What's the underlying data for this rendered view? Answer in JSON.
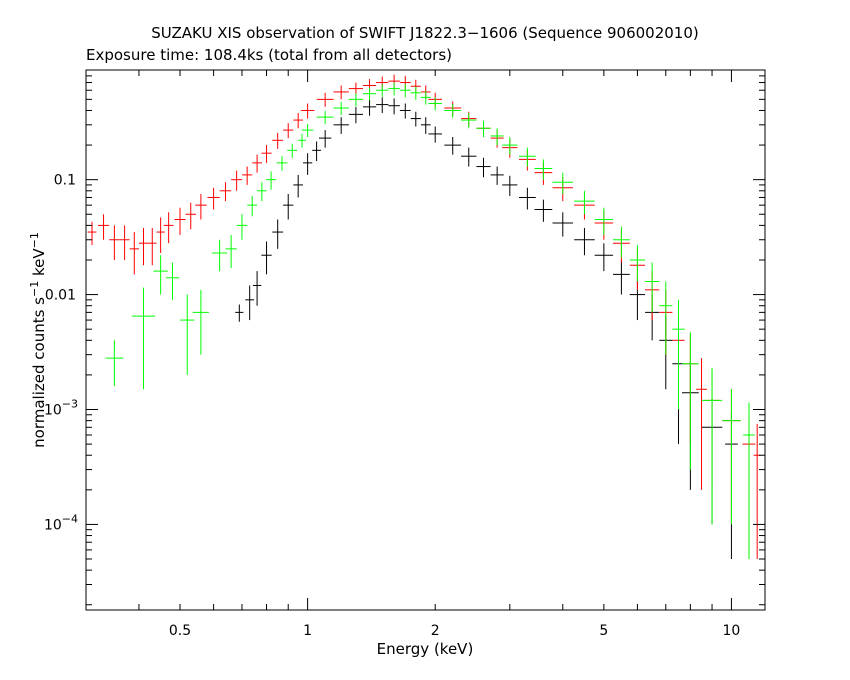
{
  "chart_data": {
    "type": "scatter",
    "title": "SUZAKU XIS observation of SWIFT J1822.3−1606 (Sequence 906002010)",
    "subtitle": "Exposure time: 108.4ks (total from all detectors)",
    "xlabel": "Energy (keV)",
    "ylabel": "normalized counts s",
    "xscale": "log",
    "yscale": "log",
    "xlim": [
      0.3,
      12
    ],
    "ylim": [
      1.8e-05,
      0.9
    ],
    "x_ticks": [
      {
        "value": 0.5,
        "label": "0.5"
      },
      {
        "value": 1,
        "label": "1"
      },
      {
        "value": 2,
        "label": "2"
      },
      {
        "value": 5,
        "label": "5"
      },
      {
        "value": 10,
        "label": "10"
      }
    ],
    "y_ticks": [
      {
        "value": 0.1,
        "label": "0.1"
      },
      {
        "value": 0.01,
        "label": "0.01"
      },
      {
        "value": 0.001,
        "label": "10",
        "exp": "−3"
      },
      {
        "value": 0.0001,
        "label": "10",
        "exp": "−4"
      }
    ],
    "series": [
      {
        "color": "#000000",
        "points": [
          [
            0.69,
            0.007,
            0.0012
          ],
          [
            0.73,
            0.009,
            0.003
          ],
          [
            0.76,
            0.012,
            0.004
          ],
          [
            0.8,
            0.022,
            0.007
          ],
          [
            0.85,
            0.035,
            0.01
          ],
          [
            0.9,
            0.06,
            0.015
          ],
          [
            0.95,
            0.09,
            0.02
          ],
          [
            1.0,
            0.14,
            0.03
          ],
          [
            1.05,
            0.18,
            0.035
          ],
          [
            1.1,
            0.23,
            0.04
          ],
          [
            1.2,
            0.3,
            0.05
          ],
          [
            1.3,
            0.37,
            0.06
          ],
          [
            1.4,
            0.43,
            0.07
          ],
          [
            1.5,
            0.45,
            0.07
          ],
          [
            1.6,
            0.44,
            0.07
          ],
          [
            1.7,
            0.4,
            0.06
          ],
          [
            1.8,
            0.34,
            0.05
          ],
          [
            1.9,
            0.3,
            0.05
          ],
          [
            2.0,
            0.25,
            0.04
          ],
          [
            2.2,
            0.2,
            0.035
          ],
          [
            2.4,
            0.16,
            0.03
          ],
          [
            2.6,
            0.13,
            0.025
          ],
          [
            2.8,
            0.11,
            0.02
          ],
          [
            3.0,
            0.09,
            0.018
          ],
          [
            3.3,
            0.07,
            0.015
          ],
          [
            3.6,
            0.055,
            0.012
          ],
          [
            4.0,
            0.042,
            0.01
          ],
          [
            4.5,
            0.03,
            0.008
          ],
          [
            5.0,
            0.022,
            0.006
          ],
          [
            5.5,
            0.015,
            0.005
          ],
          [
            6.0,
            0.01,
            0.004
          ],
          [
            6.5,
            0.007,
            0.003
          ],
          [
            7.0,
            0.004,
            0.0025
          ],
          [
            7.5,
            0.0025,
            0.002
          ],
          [
            8.0,
            0.0014,
            0.0012
          ],
          [
            9.0,
            0.0007,
            0.0006
          ],
          [
            10.0,
            0.0005,
            0.00045
          ]
        ]
      },
      {
        "color": "#ff0000",
        "points": [
          [
            0.31,
            0.035,
            0.008
          ],
          [
            0.33,
            0.04,
            0.01
          ],
          [
            0.35,
            0.03,
            0.01
          ],
          [
            0.37,
            0.03,
            0.01
          ],
          [
            0.39,
            0.025,
            0.01
          ],
          [
            0.41,
            0.028,
            0.01
          ],
          [
            0.43,
            0.028,
            0.01
          ],
          [
            0.45,
            0.035,
            0.012
          ],
          [
            0.47,
            0.04,
            0.012
          ],
          [
            0.5,
            0.045,
            0.012
          ],
          [
            0.53,
            0.05,
            0.013
          ],
          [
            0.56,
            0.06,
            0.015
          ],
          [
            0.6,
            0.07,
            0.015
          ],
          [
            0.64,
            0.08,
            0.015
          ],
          [
            0.68,
            0.1,
            0.02
          ],
          [
            0.72,
            0.11,
            0.02
          ],
          [
            0.76,
            0.14,
            0.025
          ],
          [
            0.8,
            0.17,
            0.03
          ],
          [
            0.85,
            0.22,
            0.035
          ],
          [
            0.9,
            0.27,
            0.04
          ],
          [
            0.95,
            0.33,
            0.05
          ],
          [
            1.0,
            0.4,
            0.06
          ],
          [
            1.1,
            0.5,
            0.07
          ],
          [
            1.2,
            0.58,
            0.08
          ],
          [
            1.3,
            0.62,
            0.08
          ],
          [
            1.4,
            0.66,
            0.09
          ],
          [
            1.5,
            0.7,
            0.09
          ],
          [
            1.6,
            0.72,
            0.1
          ],
          [
            1.7,
            0.7,
            0.1
          ],
          [
            1.8,
            0.65,
            0.09
          ],
          [
            1.9,
            0.58,
            0.08
          ],
          [
            2.0,
            0.5,
            0.07
          ],
          [
            2.2,
            0.42,
            0.06
          ],
          [
            2.4,
            0.34,
            0.05
          ],
          [
            2.6,
            0.28,
            0.045
          ],
          [
            2.8,
            0.23,
            0.04
          ],
          [
            3.0,
            0.19,
            0.035
          ],
          [
            3.3,
            0.15,
            0.03
          ],
          [
            3.6,
            0.115,
            0.025
          ],
          [
            4.0,
            0.085,
            0.02
          ],
          [
            4.5,
            0.06,
            0.015
          ],
          [
            5.0,
            0.042,
            0.012
          ],
          [
            5.5,
            0.028,
            0.009
          ],
          [
            6.0,
            0.018,
            0.007
          ],
          [
            6.5,
            0.011,
            0.005
          ],
          [
            7.0,
            0.007,
            0.004
          ],
          [
            7.5,
            0.004,
            0.003
          ],
          [
            8.0,
            0.0025,
            0.002
          ],
          [
            8.5,
            0.0015,
            0.0013
          ],
          [
            9.0,
            0.0012,
            0.001
          ],
          [
            10.0,
            0.0008,
            0.0007
          ],
          [
            11.0,
            0.0005,
            0.00045
          ],
          [
            11.5,
            0.0004,
            0.00035
          ]
        ]
      },
      {
        "color": "#00ff00",
        "points": [
          [
            0.35,
            0.0028,
            0.0012
          ],
          [
            0.41,
            0.0065,
            0.005
          ],
          [
            0.45,
            0.016,
            0.006
          ],
          [
            0.48,
            0.014,
            0.005
          ],
          [
            0.52,
            0.006,
            0.004
          ],
          [
            0.56,
            0.007,
            0.004
          ],
          [
            0.62,
            0.023,
            0.007
          ],
          [
            0.66,
            0.025,
            0.008
          ],
          [
            0.7,
            0.04,
            0.01
          ],
          [
            0.74,
            0.06,
            0.012
          ],
          [
            0.78,
            0.08,
            0.015
          ],
          [
            0.82,
            0.1,
            0.018
          ],
          [
            0.87,
            0.14,
            0.02
          ],
          [
            0.92,
            0.18,
            0.025
          ],
          [
            0.97,
            0.22,
            0.03
          ],
          [
            1.0,
            0.27,
            0.035
          ],
          [
            1.1,
            0.35,
            0.045
          ],
          [
            1.2,
            0.42,
            0.055
          ],
          [
            1.3,
            0.5,
            0.065
          ],
          [
            1.4,
            0.56,
            0.07
          ],
          [
            1.5,
            0.6,
            0.075
          ],
          [
            1.6,
            0.62,
            0.08
          ],
          [
            1.7,
            0.6,
            0.08
          ],
          [
            1.8,
            0.57,
            0.075
          ],
          [
            1.9,
            0.52,
            0.07
          ],
          [
            2.0,
            0.46,
            0.06
          ],
          [
            2.2,
            0.4,
            0.055
          ],
          [
            2.4,
            0.33,
            0.05
          ],
          [
            2.6,
            0.28,
            0.045
          ],
          [
            2.8,
            0.24,
            0.04
          ],
          [
            3.0,
            0.2,
            0.035
          ],
          [
            3.3,
            0.16,
            0.03
          ],
          [
            3.6,
            0.125,
            0.025
          ],
          [
            4.0,
            0.095,
            0.02
          ],
          [
            4.5,
            0.065,
            0.015
          ],
          [
            5.0,
            0.045,
            0.012
          ],
          [
            5.5,
            0.03,
            0.009
          ],
          [
            6.0,
            0.02,
            0.007
          ],
          [
            6.5,
            0.013,
            0.006
          ],
          [
            7.0,
            0.008,
            0.005
          ],
          [
            7.5,
            0.005,
            0.004
          ],
          [
            8.0,
            0.0025,
            0.0022
          ],
          [
            9.0,
            0.0012,
            0.0011
          ],
          [
            10.0,
            0.0008,
            0.0007
          ],
          [
            11.0,
            0.0006,
            0.00055
          ]
        ]
      }
    ]
  }
}
